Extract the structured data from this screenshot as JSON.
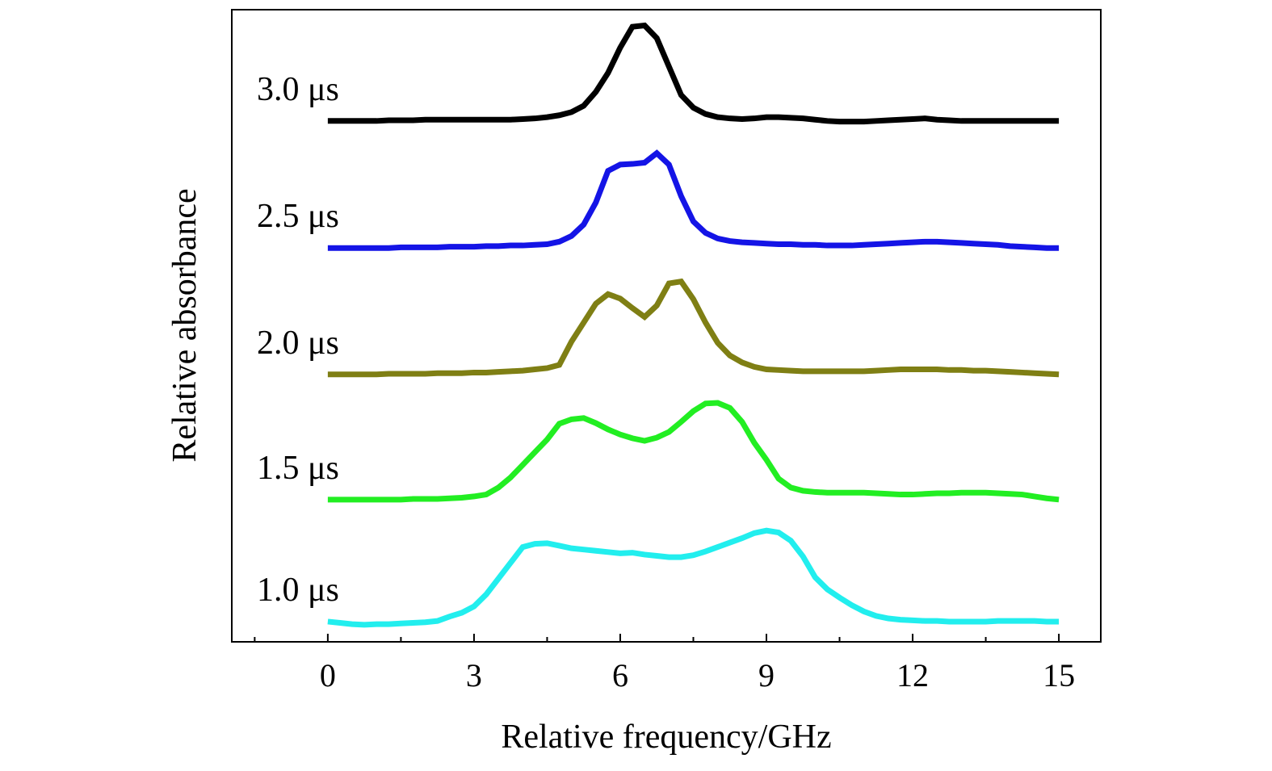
{
  "chart_data": {
    "type": "line",
    "x_label": "Relative frequency/GHz",
    "y_label": "Relative absorbance",
    "xlim": [
      -1.97,
      15.86
    ],
    "ylim": [
      0,
      100
    ],
    "xticks": [
      0,
      3,
      6,
      9,
      12,
      15
    ],
    "minor_xticks": [
      -1.5,
      1.5,
      4.5,
      7.5,
      10.5,
      13.5
    ],
    "x": [
      0,
      0.25,
      0.5,
      0.75,
      1,
      1.25,
      1.5,
      1.75,
      2,
      2.25,
      2.5,
      2.75,
      3,
      3.25,
      3.5,
      3.75,
      4,
      4.25,
      4.5,
      4.75,
      5,
      5.25,
      5.5,
      5.75,
      6,
      6.25,
      6.5,
      6.75,
      7,
      7.25,
      7.5,
      7.75,
      8,
      8.25,
      8.5,
      8.75,
      9,
      9.25,
      9.5,
      9.75,
      10,
      10.25,
      10.5,
      10.75,
      11,
      11.25,
      11.5,
      11.75,
      12,
      12.25,
      12.5,
      12.75,
      13,
      13.25,
      13.5,
      13.75,
      14,
      14.25,
      14.5,
      14.75,
      15
    ],
    "series": [
      {
        "name": "3.0 μs",
        "color": "#000000",
        "values": [
          82.4,
          82.4,
          82.4,
          82.4,
          82.4,
          82.5,
          82.5,
          82.5,
          82.6,
          82.6,
          82.6,
          82.6,
          82.6,
          82.6,
          82.6,
          82.6,
          82.7,
          82.8,
          83,
          83.3,
          83.8,
          84.8,
          87,
          90,
          94,
          97.3,
          97.5,
          95.5,
          91,
          86.5,
          84.5,
          83.5,
          83,
          82.8,
          82.7,
          82.8,
          83,
          83,
          82.9,
          82.8,
          82.6,
          82.4,
          82.3,
          82.3,
          82.3,
          82.4,
          82.5,
          82.6,
          82.7,
          82.8,
          82.6,
          82.5,
          82.4,
          82.4,
          82.4,
          82.4,
          82.4,
          82.4,
          82.4,
          82.4,
          82.4
        ]
      },
      {
        "name": "2.5 μs",
        "color": "#1414e6",
        "values": [
          62.3,
          62.3,
          62.3,
          62.3,
          62.3,
          62.3,
          62.4,
          62.4,
          62.4,
          62.4,
          62.5,
          62.5,
          62.5,
          62.6,
          62.6,
          62.7,
          62.7,
          62.8,
          62.9,
          63.3,
          64.2,
          66,
          69.5,
          74.5,
          75.5,
          75.6,
          75.8,
          77.3,
          75.5,
          70.5,
          66.5,
          64.7,
          63.8,
          63.4,
          63.2,
          63.1,
          63,
          62.9,
          62.9,
          62.8,
          62.8,
          62.7,
          62.7,
          62.7,
          62.8,
          62.9,
          63,
          63.1,
          63.2,
          63.3,
          63.3,
          63.2,
          63.1,
          63,
          62.9,
          62.8,
          62.6,
          62.5,
          62.4,
          62.3,
          62.3
        ]
      },
      {
        "name": "2.0 μs",
        "color": "#7f7f14",
        "values": [
          42.3,
          42.3,
          42.3,
          42.3,
          42.3,
          42.4,
          42.4,
          42.4,
          42.4,
          42.5,
          42.5,
          42.5,
          42.6,
          42.6,
          42.7,
          42.8,
          42.9,
          43.1,
          43.3,
          43.8,
          47.5,
          50.5,
          53.5,
          55,
          54.3,
          52.8,
          51.4,
          53.2,
          56.7,
          57,
          54.2,
          50.5,
          47.3,
          45.3,
          44.2,
          43.5,
          43.1,
          43,
          42.9,
          42.8,
          42.8,
          42.8,
          42.8,
          42.8,
          42.8,
          42.9,
          43,
          43.1,
          43.1,
          43.1,
          43.1,
          43,
          43,
          42.9,
          42.9,
          42.8,
          42.7,
          42.6,
          42.5,
          42.4,
          42.3
        ]
      },
      {
        "name": "1.5 μs",
        "color": "#22ee22",
        "values": [
          22.5,
          22.5,
          22.5,
          22.5,
          22.5,
          22.5,
          22.5,
          22.6,
          22.6,
          22.6,
          22.7,
          22.8,
          23,
          23.3,
          24.4,
          26,
          28,
          30,
          32,
          34.5,
          35.2,
          35.4,
          34.6,
          33.6,
          32.8,
          32.2,
          31.8,
          32.3,
          33.2,
          34.8,
          36.5,
          37.7,
          37.8,
          37,
          34.8,
          31.5,
          28.8,
          25.8,
          24.4,
          23.9,
          23.7,
          23.6,
          23.6,
          23.6,
          23.6,
          23.5,
          23.4,
          23.3,
          23.3,
          23.4,
          23.5,
          23.5,
          23.6,
          23.6,
          23.6,
          23.5,
          23.4,
          23.3,
          23,
          22.7,
          22.5
        ]
      },
      {
        "name": "1.0 μs",
        "color": "#22eeee",
        "values": [
          3.2,
          3,
          2.8,
          2.7,
          2.8,
          2.8,
          2.9,
          3,
          3.1,
          3.3,
          4,
          4.6,
          5.6,
          7.5,
          10,
          12.5,
          15,
          15.5,
          15.6,
          15.2,
          14.8,
          14.6,
          14.4,
          14.2,
          14,
          14.1,
          13.8,
          13.6,
          13.4,
          13.4,
          13.7,
          14.3,
          15,
          15.7,
          16.4,
          17.2,
          17.6,
          17.3,
          16,
          13.5,
          10.2,
          8.3,
          7,
          5.8,
          4.8,
          4.1,
          3.7,
          3.5,
          3.4,
          3.3,
          3.3,
          3.2,
          3.2,
          3.2,
          3.2,
          3.3,
          3.3,
          3.3,
          3.3,
          3.2,
          3.2
        ]
      }
    ]
  }
}
